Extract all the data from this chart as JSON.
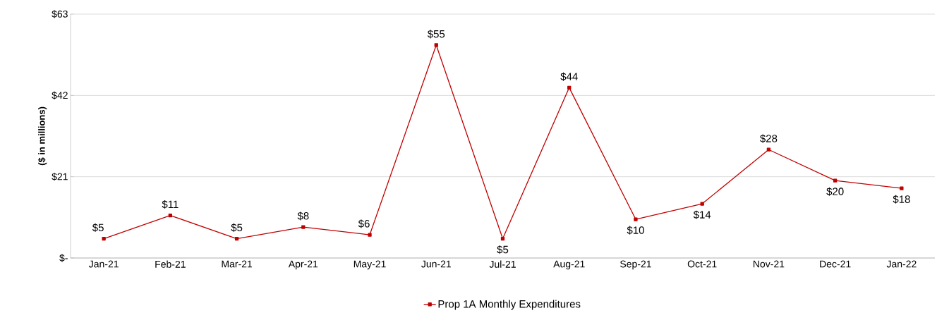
{
  "chart_data": {
    "type": "line",
    "ylabel": "($ in millions)",
    "categories": [
      "Jan-21",
      "Feb-21",
      "Mar-21",
      "Apr-21",
      "May-21",
      "Jun-21",
      "Jul-21",
      "Aug-21",
      "Sep-21",
      "Oct-21",
      "Nov-21",
      "Dec-21",
      "Jan-22"
    ],
    "series": [
      {
        "name": "Prop 1A Monthly Expenditures",
        "color": "#c00000",
        "values": [
          5,
          11,
          5,
          8,
          6,
          55,
          5,
          44,
          10,
          14,
          28,
          20,
          18
        ],
        "value_labels": [
          "$5",
          "$11",
          "$5",
          "$8",
          "$6",
          "$55",
          "$5",
          "$44",
          "$10",
          "$14",
          "$28",
          "$20",
          "$18"
        ]
      }
    ],
    "ylim": [
      0,
      63
    ],
    "yticks": [
      {
        "value": 0,
        "label": "$-"
      },
      {
        "value": 21,
        "label": "$21"
      },
      {
        "value": 42,
        "label": "$42"
      },
      {
        "value": 63,
        "label": "$63"
      }
    ],
    "grid": "y",
    "legend": "bottom",
    "marker": "square",
    "line_style": "solid"
  }
}
